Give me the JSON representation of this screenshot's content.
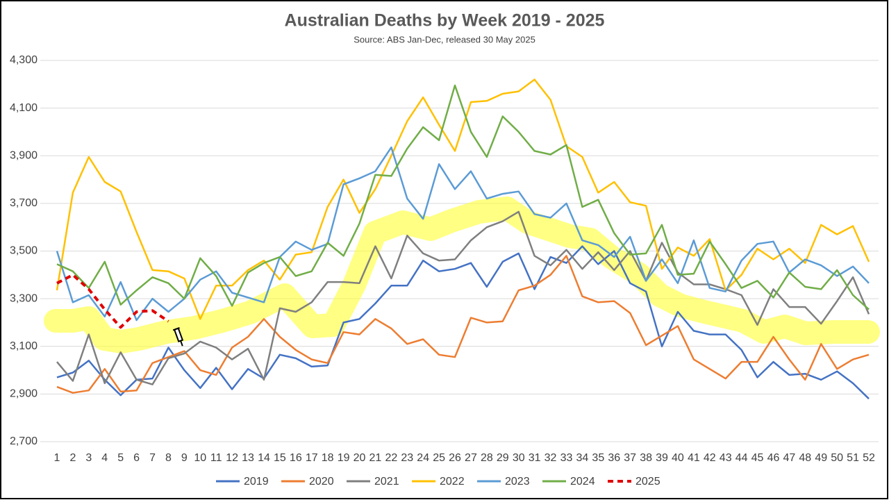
{
  "chart_data": {
    "type": "line",
    "title": "Australian Deaths by Week 2019 - 2025",
    "subtitle": "Source: ABS Jan-Dec, released 30 May 2025",
    "categories": [
      "1",
      "2",
      "3",
      "4",
      "5",
      "6",
      "7",
      "8",
      "9",
      "10",
      "11",
      "12",
      "13",
      "14",
      "15",
      "16",
      "17",
      "18",
      "19",
      "20",
      "21",
      "22",
      "23",
      "24",
      "25",
      "26",
      "27",
      "28",
      "29",
      "30",
      "31",
      "32",
      "33",
      "34",
      "35",
      "36",
      "37",
      "38",
      "39",
      "40",
      "41",
      "42",
      "43",
      "44",
      "45",
      "46",
      "47",
      "48",
      "49",
      "50",
      "51",
      "52"
    ],
    "ylim": [
      2700,
      4300
    ],
    "yticks": [
      {
        "value": 2700,
        "label": "2,700"
      },
      {
        "value": 2900,
        "label": "2,900"
      },
      {
        "value": 3100,
        "label": "3,100"
      },
      {
        "value": 3300,
        "label": "3,300"
      },
      {
        "value": 3500,
        "label": "3,500"
      },
      {
        "value": 3700,
        "label": "3,700"
      },
      {
        "value": 3900,
        "label": "3,900"
      },
      {
        "value": 4100,
        "label": "4,100"
      },
      {
        "value": 4300,
        "label": "4,300"
      }
    ],
    "grid": true,
    "legend": "bottom",
    "series": [
      {
        "name": "2019",
        "color": "#4472c4",
        "values": [
          2970,
          2990,
          3040,
          2960,
          2895,
          2960,
          2965,
          3095,
          3000,
          2925,
          3010,
          2920,
          3005,
          2965,
          3065,
          3050,
          3015,
          3020,
          3200,
          3215,
          3280,
          3355,
          3355,
          3460,
          3415,
          3425,
          3450,
          3350,
          3455,
          3490,
          3340,
          3475,
          3450,
          3520,
          3445,
          3500,
          3365,
          3330,
          3100,
          3245,
          3165,
          3150,
          3150,
          3085,
          2970,
          3035,
          2980,
          2985,
          2960,
          2995,
          2945,
          2880
        ]
      },
      {
        "name": "2020",
        "color": "#ed7d31",
        "values": [
          2930,
          2905,
          2915,
          3005,
          2910,
          2915,
          3030,
          3055,
          3080,
          3000,
          2980,
          3095,
          3140,
          3215,
          3140,
          3085,
          3045,
          3030,
          3160,
          3150,
          3215,
          3175,
          3110,
          3130,
          3065,
          3055,
          3220,
          3200,
          3205,
          3335,
          3355,
          3400,
          3480,
          3310,
          3285,
          3290,
          3240,
          3105,
          3145,
          3185,
          3045,
          3005,
          2965,
          3035,
          3035,
          3140,
          3045,
          2960,
          3110,
          3005,
          3045,
          3065
        ]
      },
      {
        "name": "2021",
        "color": "#7f7f7f",
        "values": [
          3035,
          2955,
          3150,
          2945,
          3075,
          2960,
          2940,
          3050,
          3070,
          3120,
          3095,
          3045,
          3090,
          2960,
          3260,
          3245,
          3285,
          3370,
          3370,
          3365,
          3520,
          3385,
          3565,
          3490,
          3460,
          3465,
          3545,
          3600,
          3625,
          3665,
          3480,
          3440,
          3505,
          3425,
          3495,
          3420,
          3500,
          3375,
          3535,
          3410,
          3360,
          3360,
          3340,
          3315,
          3190,
          3340,
          3265,
          3265,
          3195,
          3290,
          3390,
          3235
        ]
      },
      {
        "name": "2022",
        "color": "#ffc000",
        "values": [
          3335,
          3745,
          3895,
          3790,
          3750,
          3580,
          3420,
          3415,
          3385,
          3215,
          3355,
          3355,
          3420,
          3460,
          3380,
          3485,
          3495,
          3685,
          3800,
          3660,
          3760,
          3900,
          4045,
          4145,
          4030,
          3920,
          4125,
          4130,
          4160,
          4170,
          4220,
          4135,
          3940,
          3895,
          3745,
          3790,
          3705,
          3690,
          3425,
          3515,
          3480,
          3550,
          3335,
          3400,
          3510,
          3465,
          3510,
          3450,
          3610,
          3570,
          3605,
          3455
        ]
      },
      {
        "name": "2023",
        "color": "#5b9bd5",
        "values": [
          3500,
          3285,
          3315,
          3225,
          3370,
          3210,
          3300,
          3245,
          3300,
          3380,
          3415,
          3325,
          3305,
          3285,
          3475,
          3540,
          3505,
          3530,
          3780,
          3805,
          3835,
          3935,
          3720,
          3635,
          3865,
          3760,
          3835,
          3720,
          3740,
          3750,
          3655,
          3640,
          3700,
          3545,
          3525,
          3475,
          3560,
          3375,
          3465,
          3365,
          3545,
          3345,
          3330,
          3460,
          3530,
          3540,
          3410,
          3465,
          3440,
          3395,
          3435,
          3365
        ]
      },
      {
        "name": "2024",
        "color": "#70ad47",
        "values": [
          3445,
          3415,
          3345,
          3455,
          3275,
          3335,
          3390,
          3365,
          3300,
          3470,
          3395,
          3270,
          3410,
          3450,
          3475,
          3395,
          3415,
          3535,
          3480,
          3615,
          3820,
          3815,
          3930,
          4020,
          3965,
          4195,
          4000,
          3895,
          4065,
          4000,
          3920,
          3905,
          3945,
          3685,
          3715,
          3575,
          3485,
          3490,
          3610,
          3400,
          3405,
          3540,
          3445,
          3345,
          3375,
          3305,
          3410,
          3350,
          3340,
          3420,
          3315,
          3255
        ]
      },
      {
        "name": "2025",
        "color": "#e00000",
        "dash": true,
        "values": [
          3365,
          3400,
          3340,
          3255,
          3180,
          3245,
          3250,
          3205,
          null,
          null,
          null,
          null,
          null,
          null,
          null,
          null,
          null,
          null,
          null,
          null,
          null,
          null,
          null,
          null,
          null,
          null,
          null,
          null,
          null,
          null,
          null,
          null,
          null,
          null,
          null,
          null,
          null,
          null,
          null,
          null,
          null,
          null,
          null,
          null,
          null,
          null,
          null,
          null,
          null,
          null,
          null,
          null
        ]
      }
    ]
  }
}
